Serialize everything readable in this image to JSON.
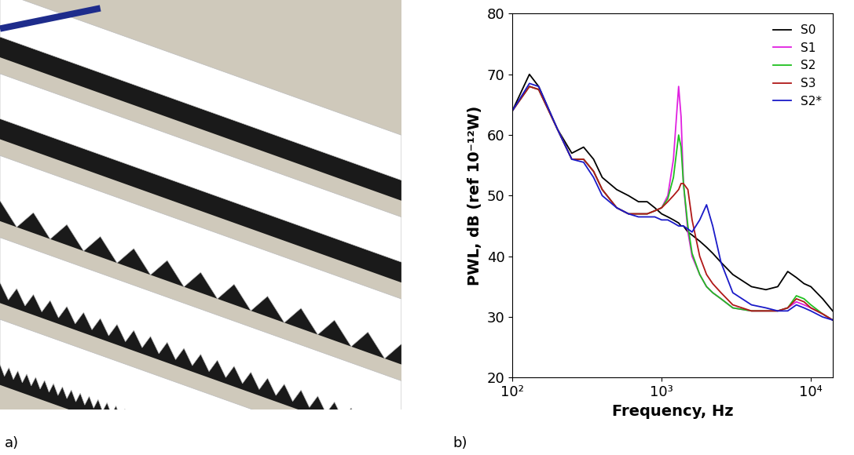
{
  "panel_labels": [
    "a)",
    "b)"
  ],
  "chart_data": {
    "type": "line",
    "log": "x",
    "grid": false,
    "legend": "upper right",
    "xlabel": "Frequency, Hz",
    "ylabel": "PWL, dB (ref 10⁻¹²W)",
    "xlim": [
      100,
      14000
    ],
    "ylim": [
      20,
      80
    ],
    "xticks": [
      {
        "value": 100,
        "label": "10²"
      },
      {
        "value": 1000,
        "label": "10³"
      },
      {
        "value": 10000,
        "label": "10⁴"
      }
    ],
    "yticks": [
      20,
      30,
      40,
      50,
      60,
      70,
      80
    ],
    "x": [
      100,
      130,
      150,
      200,
      250,
      300,
      350,
      400,
      500,
      600,
      700,
      800,
      900,
      1000,
      1100,
      1200,
      1300,
      1350,
      1400,
      1500,
      1600,
      1800,
      2000,
      2200,
      2500,
      3000,
      4000,
      5000,
      6000,
      7000,
      8000,
      9000,
      10000,
      12000,
      14000
    ],
    "series": [
      {
        "name": "S0",
        "color": "#000000",
        "values": [
          64,
          70,
          68,
          61,
          57,
          58,
          56,
          53,
          51,
          50,
          49,
          49,
          48,
          47,
          46.5,
          46,
          45.5,
          45,
          45,
          44,
          43.5,
          42.5,
          41.5,
          40.5,
          39,
          37,
          35,
          34.5,
          35,
          37.5,
          36.5,
          35.5,
          35,
          33,
          31
        ]
      },
      {
        "name": "S1",
        "color": "#e020e0",
        "values": [
          64,
          68,
          67.5,
          61,
          56,
          56,
          54,
          51,
          48,
          47,
          47,
          47,
          47.5,
          48,
          50,
          56,
          68,
          63,
          52,
          44,
          40,
          37,
          35,
          34,
          33,
          31.5,
          31,
          31,
          31,
          31.5,
          32.5,
          32,
          31.5,
          30.5,
          29.5
        ]
      },
      {
        "name": "S2",
        "color": "#20c020",
        "values": [
          64,
          68,
          67.5,
          61,
          56,
          56,
          54,
          51,
          48,
          47,
          47,
          47,
          47.5,
          48,
          49.5,
          53,
          60,
          58,
          52,
          45,
          40.5,
          37,
          35,
          34,
          33,
          31.5,
          31,
          31,
          31,
          31.5,
          33.5,
          33,
          32,
          30.5,
          29.5
        ]
      },
      {
        "name": "S3",
        "color": "#b01818",
        "values": [
          64,
          68,
          67.5,
          61,
          56,
          56,
          54,
          51,
          48,
          47,
          47,
          47,
          47.5,
          48,
          49,
          50,
          51,
          52,
          52,
          51,
          46,
          40,
          37,
          35.5,
          34,
          32,
          31,
          31,
          31,
          31.5,
          33,
          32.5,
          31.5,
          30.5,
          29.5
        ]
      },
      {
        "name": "S2*",
        "color": "#1a1ac8",
        "values": [
          64,
          68.5,
          68,
          61,
          56,
          55.5,
          53,
          50,
          48,
          47,
          46.5,
          46.5,
          46.5,
          46,
          46,
          45.5,
          45,
          45,
          45,
          44.5,
          44,
          46,
          48.5,
          45,
          39,
          34,
          32,
          31.5,
          31,
          31,
          32,
          31.5,
          31,
          30,
          29.5
        ]
      }
    ]
  }
}
